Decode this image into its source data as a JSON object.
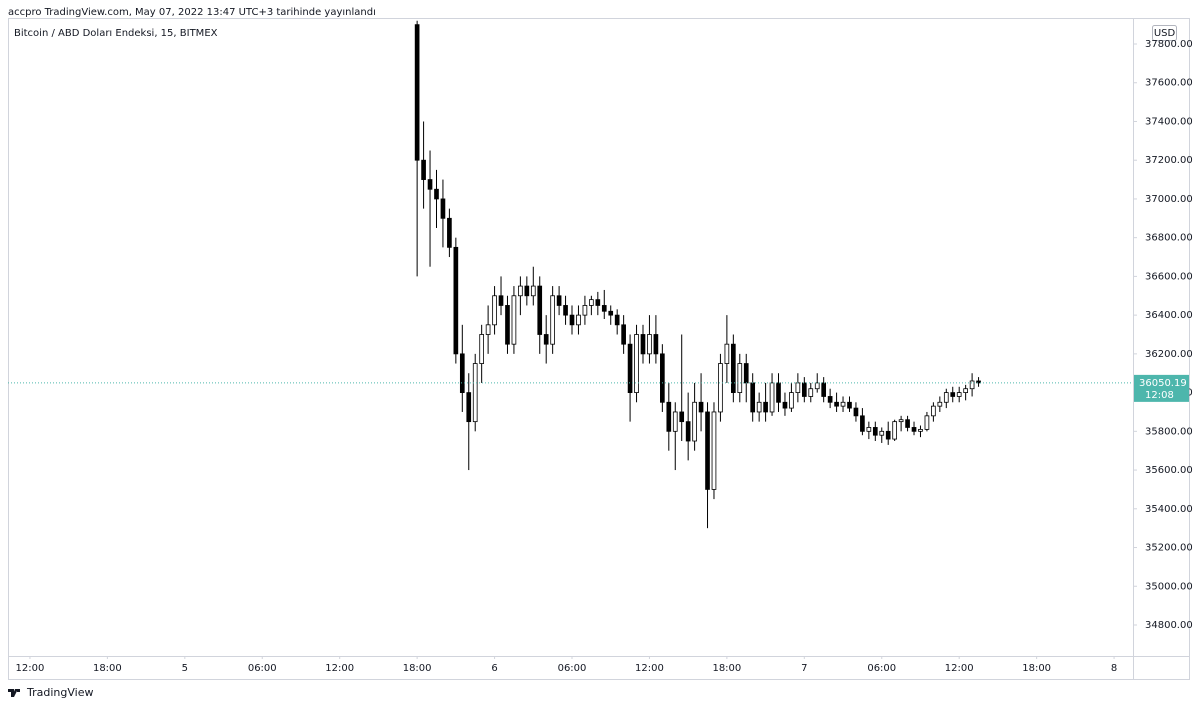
{
  "header": {
    "published": "accpro TradingView.com, May 07, 2022 13:47 UTC+3 tarihinde yayınlandı"
  },
  "footer": {
    "brand": "TradingView"
  },
  "chart_data": {
    "type": "candlestick",
    "title": "Bitcoin / ABD Doları Endeksi, 15, BITMEX",
    "currency": "USD",
    "countdown": "12:08",
    "up_color": "#ffffff",
    "down_color": "#000000",
    "border_color": "#000000",
    "last_price_color": "#4db6ac",
    "x": [
      "5 18:00",
      "5 18:30",
      "5 19:00",
      "5 19:30",
      "5 20:00",
      "5 20:30",
      "5 21:00",
      "5 21:30",
      "5 22:00",
      "5 22:30",
      "5 23:00",
      "5 23:30",
      "6 00:00",
      "6 00:30",
      "6 01:00",
      "6 01:30",
      "6 02:00",
      "6 02:30",
      "6 03:00",
      "6 03:30",
      "6 04:00",
      "6 04:30",
      "6 05:00",
      "6 05:30",
      "6 06:00",
      "6 06:30",
      "6 07:00",
      "6 07:30",
      "6 08:00",
      "6 08:30",
      "6 09:00",
      "6 09:30",
      "6 10:00",
      "6 10:30",
      "6 11:00",
      "6 11:30",
      "6 12:00",
      "6 12:30",
      "6 13:00",
      "6 13:30",
      "6 14:00",
      "6 14:30",
      "6 15:00",
      "6 15:30",
      "6 16:00",
      "6 16:30",
      "6 17:00",
      "6 17:30",
      "6 18:00",
      "6 18:30",
      "6 19:00",
      "6 19:30",
      "6 20:00",
      "6 20:30",
      "6 21:00",
      "6 21:30",
      "6 22:00",
      "6 22:30",
      "6 23:00",
      "6 23:30",
      "7 00:00",
      "7 00:30",
      "7 01:00",
      "7 01:30",
      "7 02:00",
      "7 02:30",
      "7 03:00",
      "7 03:30",
      "7 04:00",
      "7 04:30",
      "7 05:00",
      "7 05:30",
      "7 06:00",
      "7 06:30",
      "7 07:00",
      "7 07:30",
      "7 08:00",
      "7 08:30",
      "7 09:00",
      "7 09:30",
      "7 10:00",
      "7 10:30",
      "7 11:00",
      "7 11:30",
      "7 12:00",
      "7 12:30",
      "7 13:00",
      "7 13:30"
    ],
    "open": [
      37900,
      37200,
      37100,
      37050,
      37000,
      36900,
      36750,
      36200,
      36000,
      35850,
      36150,
      36300,
      36350,
      36500,
      36450,
      36250,
      36500,
      36550,
      36500,
      36550,
      36300,
      36250,
      36500,
      36450,
      36400,
      36350,
      36400,
      36450,
      36480,
      36450,
      36420,
      36400,
      36350,
      36250,
      36000,
      36300,
      36200,
      36300,
      36200,
      35950,
      35800,
      35900,
      35850,
      35750,
      35950,
      35900,
      35500,
      35900,
      36150,
      36250,
      36000,
      36150,
      36050,
      35900,
      35950,
      35900,
      36050,
      35950,
      35920,
      36000,
      36050,
      35980,
      36020,
      36050,
      35980,
      35950,
      35930,
      35950,
      35920,
      35880,
      35800,
      35820,
      35780,
      35800,
      35760,
      35850,
      35860,
      35820,
      35800,
      35810,
      35880,
      35930,
      35950,
      36000,
      35980,
      36000,
      36020,
      36060
    ],
    "high": [
      37920,
      37400,
      37250,
      37150,
      37100,
      36950,
      36800,
      36350,
      36100,
      36200,
      36350,
      36450,
      36550,
      36600,
      36500,
      36550,
      36600,
      36600,
      36650,
      36600,
      36400,
      36550,
      36550,
      36500,
      36450,
      36450,
      36500,
      36500,
      36520,
      36530,
      36450,
      36430,
      36400,
      36300,
      36350,
      36350,
      36400,
      36400,
      36250,
      36050,
      35950,
      36300,
      36000,
      36050,
      36100,
      35950,
      35950,
      36200,
      36400,
      36300,
      36200,
      36200,
      36100,
      36000,
      36050,
      36100,
      36100,
      36000,
      36050,
      36100,
      36080,
      36050,
      36100,
      36080,
      36020,
      36000,
      35980,
      35980,
      35950,
      35920,
      35850,
      35850,
      35820,
      35850,
      35860,
      35880,
      35880,
      35850,
      35830,
      35900,
      35950,
      35980,
      36020,
      36030,
      36030,
      36040,
      36100,
      36080
    ],
    "low": [
      36600,
      36950,
      36650,
      36850,
      36750,
      36700,
      36150,
      35900,
      35600,
      35800,
      36050,
      36200,
      36300,
      36400,
      36200,
      36200,
      36400,
      36450,
      36450,
      36200,
      36150,
      36200,
      36400,
      36350,
      36300,
      36300,
      36350,
      36400,
      36400,
      36380,
      36350,
      36300,
      36200,
      35850,
      35950,
      36150,
      36150,
      36150,
      35900,
      35700,
      35600,
      35750,
      35650,
      35700,
      35800,
      35300,
      35450,
      35850,
      36050,
      35950,
      35950,
      35950,
      35850,
      35850,
      35850,
      35880,
      35900,
      35880,
      35900,
      35950,
      35950,
      35950,
      36000,
      35950,
      35920,
      35900,
      35900,
      35900,
      35850,
      35780,
      35760,
      35750,
      35740,
      35730,
      35750,
      35800,
      35800,
      35780,
      35770,
      35800,
      35850,
      35900,
      35920,
      35950,
      35950,
      35960,
      35980,
      36030
    ],
    "close": [
      37200,
      37100,
      37050,
      37000,
      36900,
      36750,
      36200,
      36000,
      35850,
      36150,
      36300,
      36350,
      36500,
      36450,
      36250,
      36500,
      36550,
      36500,
      36550,
      36300,
      36250,
      36500,
      36450,
      36400,
      36350,
      36400,
      36450,
      36480,
      36450,
      36420,
      36400,
      36350,
      36250,
      36000,
      36300,
      36200,
      36300,
      36200,
      35950,
      35800,
      35900,
      35850,
      35750,
      35950,
      35900,
      35500,
      35900,
      36150,
      36250,
      36000,
      36150,
      36050,
      35900,
      35950,
      35900,
      36050,
      35950,
      35920,
      36000,
      36050,
      35980,
      36020,
      36050,
      35980,
      35950,
      35930,
      35950,
      35920,
      35880,
      35800,
      35820,
      35780,
      35800,
      35760,
      35850,
      35860,
      35820,
      35800,
      35810,
      35880,
      35930,
      35950,
      36000,
      35980,
      36000,
      36020,
      36060,
      36050.19
    ],
    "xlim": [
      "4 10:18",
      "8 01:28"
    ],
    "xticks": [
      {
        "value": "4 12:00",
        "label": "12:00"
      },
      {
        "value": "4 18:00",
        "label": "18:00"
      },
      {
        "value": "5 00:00",
        "label": "5"
      },
      {
        "value": "5 06:00",
        "label": "06:00"
      },
      {
        "value": "5 12:00",
        "label": "12:00"
      },
      {
        "value": "5 18:00",
        "label": "18:00"
      },
      {
        "value": "6 00:00",
        "label": "6"
      },
      {
        "value": "6 06:00",
        "label": "06:00"
      },
      {
        "value": "6 12:00",
        "label": "12:00"
      },
      {
        "value": "6 18:00",
        "label": "18:00"
      },
      {
        "value": "7 00:00",
        "label": "7"
      },
      {
        "value": "7 06:00",
        "label": "06:00"
      },
      {
        "value": "7 12:00",
        "label": "12:00"
      },
      {
        "value": "7 18:00",
        "label": "18:00"
      },
      {
        "value": "8 00:00",
        "label": "8"
      }
    ],
    "ylim": [
      34645,
      37924
    ],
    "yticks": [
      {
        "value": 34800,
        "label": "34800.00"
      },
      {
        "value": 35000,
        "label": "35000.00"
      },
      {
        "value": 35200,
        "label": "35200.00"
      },
      {
        "value": 35400,
        "label": "35400.00"
      },
      {
        "value": 35600,
        "label": "35600.00"
      },
      {
        "value": 35800,
        "label": "35800.00"
      },
      {
        "value": 36000,
        "label": "36000.00"
      },
      {
        "value": 36200,
        "label": "36200.00"
      },
      {
        "value": 36400,
        "label": "36400.00"
      },
      {
        "value": 36600,
        "label": "36600.00"
      },
      {
        "value": 36800,
        "label": "36800.00"
      },
      {
        "value": 37000,
        "label": "37000.00"
      },
      {
        "value": 37200,
        "label": "37200.00"
      },
      {
        "value": 37400,
        "label": "37400.00"
      },
      {
        "value": 37600,
        "label": "37600.00"
      },
      {
        "value": 37800,
        "label": "37800.00"
      }
    ]
  }
}
